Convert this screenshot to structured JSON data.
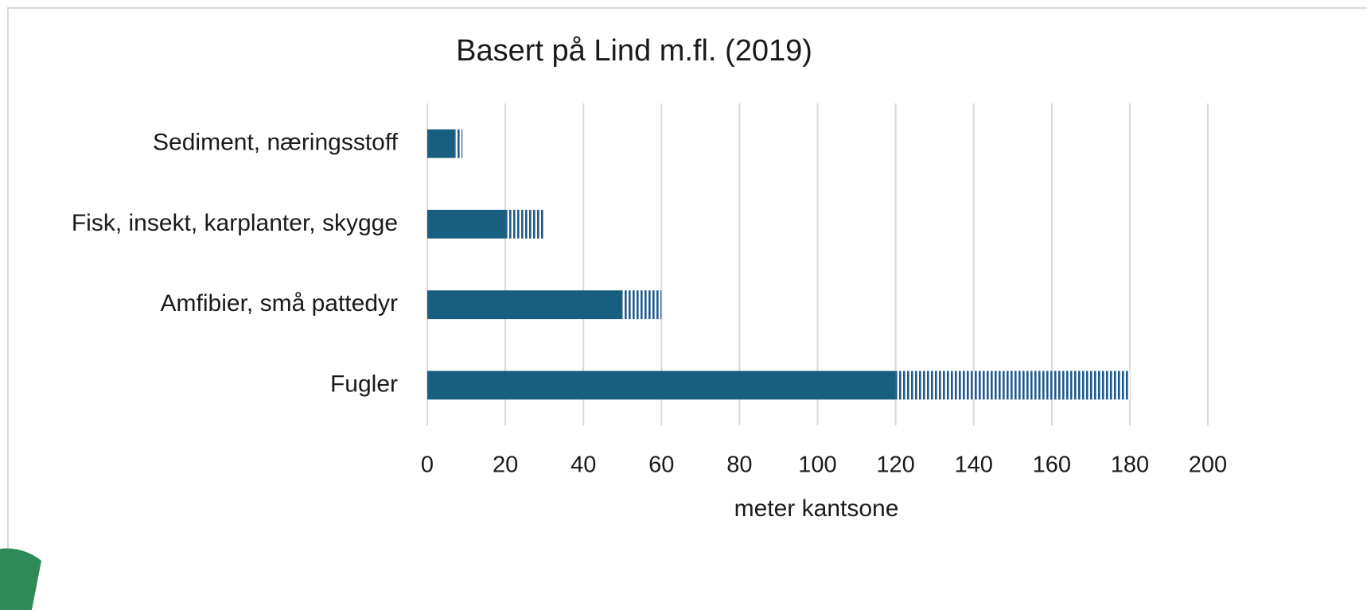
{
  "chart_data": {
    "type": "stacked-bar-horizontal",
    "title": "Basert på Lind m.fl. (2019)",
    "xlabel": "meter kantsone",
    "categories": [
      "Sediment, næringsstoff",
      "Fisk, insekt, karplanter, skygge",
      "Amfibier, små pattedyr",
      "Fugler"
    ],
    "series": [
      {
        "color": "#185e80",
        "pattern": "solid",
        "values": [
          7,
          20,
          50,
          120
        ]
      },
      {
        "color": "#1f5a8e",
        "pattern": "vertical-stripes",
        "values": [
          2,
          10,
          10,
          60
        ]
      }
    ],
    "xlim": [
      0,
      200
    ],
    "xticks": [
      0,
      20,
      40,
      60,
      80,
      100,
      120,
      140,
      160,
      180,
      200
    ],
    "grid": true
  }
}
